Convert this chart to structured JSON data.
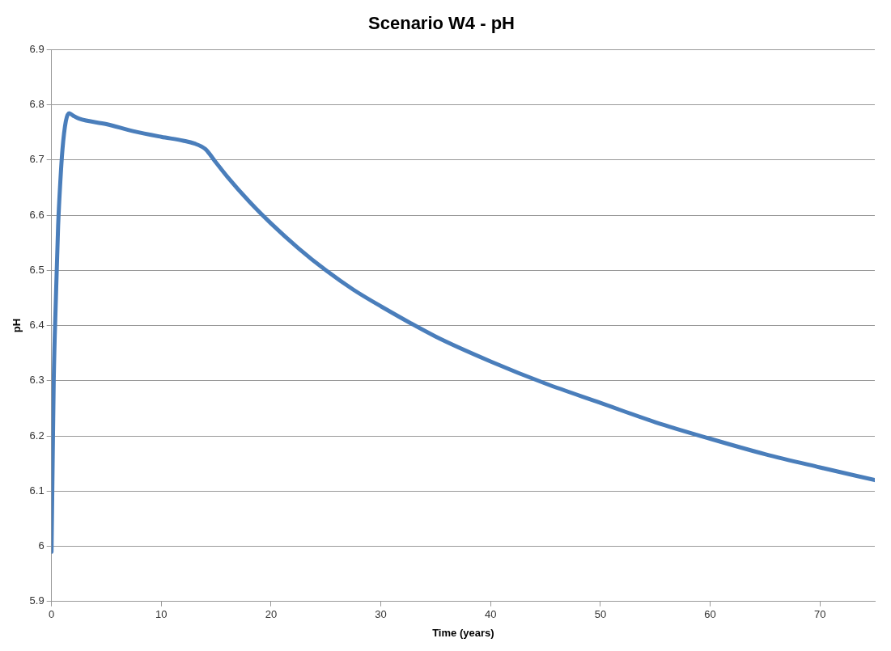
{
  "chart_data": {
    "type": "line",
    "title": "Scenario W4 - pH",
    "xlabel": "Time (years)",
    "ylabel": "pH",
    "x": [
      0,
      0.1,
      0.2,
      0.4,
      0.6,
      0.8,
      1.0,
      1.3,
      1.6,
      2.0,
      2.5,
      5,
      7.5,
      10,
      12,
      13,
      14,
      15,
      16,
      18,
      20,
      22.5,
      25,
      27.5,
      30,
      35,
      40,
      45,
      50,
      55,
      60,
      65,
      70,
      75
    ],
    "series": [
      {
        "color": "#4a7ebb",
        "values": [
          5.99,
          6.15,
          6.3,
          6.45,
          6.58,
          6.66,
          6.72,
          6.77,
          6.785,
          6.78,
          6.775,
          6.765,
          6.752,
          6.742,
          6.735,
          6.73,
          6.72,
          6.695,
          6.67,
          6.625,
          6.585,
          6.54,
          6.5,
          6.465,
          6.435,
          6.38,
          6.335,
          6.295,
          6.26,
          6.225,
          6.195,
          6.167,
          6.143,
          6.12
        ]
      }
    ],
    "xlim": [
      0,
      75
    ],
    "xticks": [
      0,
      10,
      20,
      30,
      40,
      50,
      60,
      70
    ],
    "ylim": [
      5.9,
      6.9
    ],
    "yticks": [
      5.9,
      6,
      6.1,
      6.2,
      6.3,
      6.4,
      6.5,
      6.6,
      6.7,
      6.8,
      6.9
    ],
    "grid": "y",
    "legend": false,
    "marker": "none",
    "line_style": "solid"
  }
}
